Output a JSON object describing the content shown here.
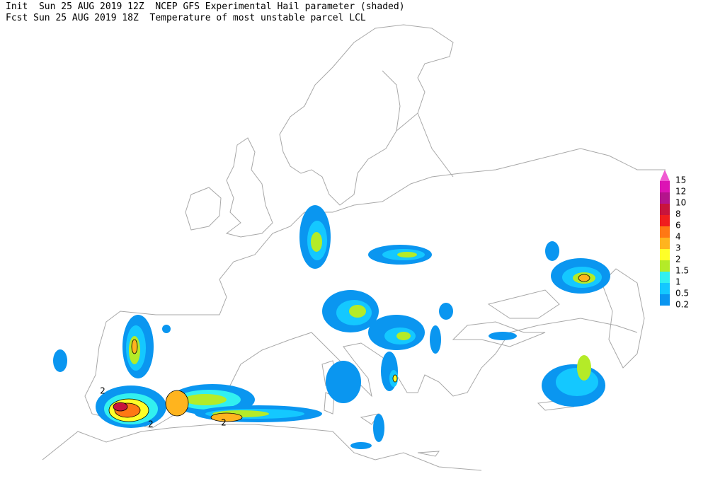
{
  "header": {
    "line1": "Init  Sun 25 AUG 2019 12Z  NCEP GFS Experimental Hail parameter (shaded)",
    "line2": "Fcst Sun 25 AUG 2019 18Z  Temperature of most unstable parcel LCL"
  },
  "legend": [
    {
      "value": 15,
      "color": "#f05ad2"
    },
    {
      "value": 12,
      "color": "#dc14b4"
    },
    {
      "value": 10,
      "color": "#b4148c"
    },
    {
      "value": 8,
      "color": "#c8143c"
    },
    {
      "value": 6,
      "color": "#f01e1e"
    },
    {
      "value": 4,
      "color": "#ff7814"
    },
    {
      "value": 3,
      "color": "#ffb41e"
    },
    {
      "value": 2,
      "color": "#ffff28"
    },
    {
      "value": 1.5,
      "color": "#b4eb28"
    },
    {
      "value": 1,
      "color": "#32f0f0"
    },
    {
      "value": 0.5,
      "color": "#14c8ff"
    },
    {
      "value": 0.2,
      "color": "#0a96f0"
    }
  ],
  "contour_labels": [
    2,
    2,
    2
  ]
}
